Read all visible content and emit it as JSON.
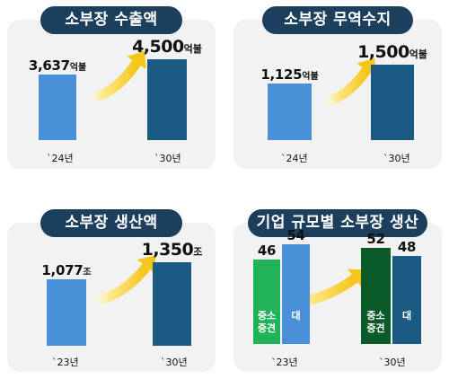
{
  "colors": {
    "title_bg": "#1d3f5e",
    "panel_bg": "#f2f2f2",
    "bar_light": "#4a90d9",
    "bar_dark": "#1b5a82",
    "bar_green_light": "#22b35a",
    "bar_green_dark": "#0b5a2a",
    "arrow": "#f5c518"
  },
  "chart_data": [
    {
      "type": "bar",
      "title": "소부장 수출액",
      "categories": [
        "`24년",
        "`30년"
      ],
      "values": [
        3637,
        4500
      ],
      "value_labels": [
        {
          "num": "3,637",
          "unit": "억불"
        },
        {
          "num": "4,500",
          "unit": "억불"
        }
      ],
      "ylim": [
        0,
        5000
      ]
    },
    {
      "type": "bar",
      "title": "소부장 무역수지",
      "categories": [
        "`24년",
        "`30년"
      ],
      "values": [
        1125,
        1500
      ],
      "value_labels": [
        {
          "num": "1,125",
          "unit": "억불"
        },
        {
          "num": "1,500",
          "unit": "억불"
        }
      ],
      "ylim": [
        0,
        1700
      ]
    },
    {
      "type": "bar",
      "title": "소부장 생산액",
      "categories": [
        "`23년",
        "`30년"
      ],
      "values": [
        1077,
        1350
      ],
      "value_labels": [
        {
          "num": "1,077",
          "unit": "조"
        },
        {
          "num": "1,350",
          "unit": "조"
        }
      ],
      "ylim": [
        0,
        1500
      ]
    },
    {
      "type": "bar",
      "title": "기업 규모별 소부장 생산",
      "categories": [
        "`23년",
        "`30년"
      ],
      "series": [
        {
          "name": "중소\n중견",
          "values": [
            46,
            52
          ]
        },
        {
          "name": "대",
          "values": [
            54,
            48
          ]
        }
      ],
      "ylim": [
        0,
        60
      ]
    }
  ]
}
